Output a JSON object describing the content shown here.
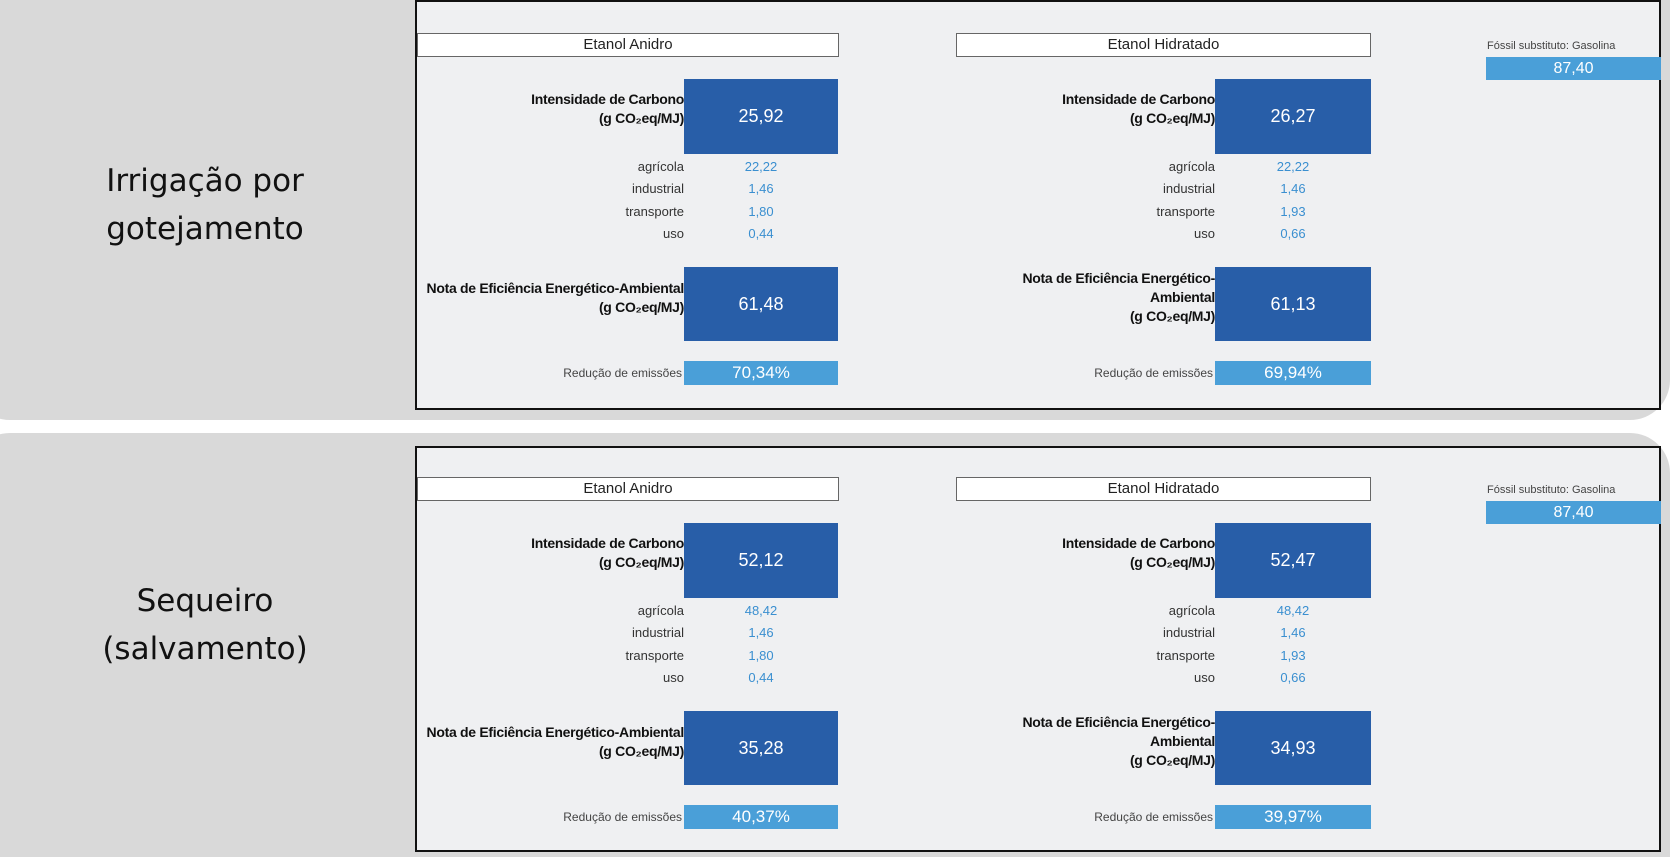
{
  "colors": {
    "dark_blue": "#285ea8",
    "light_blue": "#4a9fd8",
    "panel_gray": "#d9d9d9",
    "value_text": "#3a8fd0"
  },
  "labels": {
    "carbon_intensity": "Intensidade de Carbono",
    "unit": "(g CO₂eq/MJ)",
    "nota_anidro": "Nota de Eficiência Energético-Ambiental",
    "nota_hidratado": "Nota de Eficiência Energético-\nAmbiental",
    "reduction": "Redução de emissões",
    "rows": [
      "agrícola",
      "industrial",
      "transporte",
      "uso"
    ],
    "fossil": "Fóssil substituto: Gasolina"
  },
  "scenarios": [
    {
      "name": "Irrigação por gotejamento",
      "fossil_value": "87,40",
      "fuels": [
        {
          "title": "Etanol Anidro",
          "carbon_intensity": "25,92",
          "rows": [
            "22,22",
            "1,46",
            "1,80",
            "0,44"
          ],
          "nota": "61,48",
          "reduction": "70,34%"
        },
        {
          "title": "Etanol Hidratado",
          "carbon_intensity": "26,27",
          "rows": [
            "22,22",
            "1,46",
            "1,93",
            "0,66"
          ],
          "nota": "61,13",
          "reduction": "69,94%"
        }
      ]
    },
    {
      "name": "Sequeiro (salvamento)",
      "fossil_value": "87,40",
      "fuels": [
        {
          "title": "Etanol Anidro",
          "carbon_intensity": "52,12",
          "rows": [
            "48,42",
            "1,46",
            "1,80",
            "0,44"
          ],
          "nota": "35,28",
          "reduction": "40,37%"
        },
        {
          "title": "Etanol Hidratado",
          "carbon_intensity": "52,47",
          "rows": [
            "48,42",
            "1,46",
            "1,93",
            "0,66"
          ],
          "nota": "34,93",
          "reduction": "39,97%"
        }
      ]
    }
  ]
}
